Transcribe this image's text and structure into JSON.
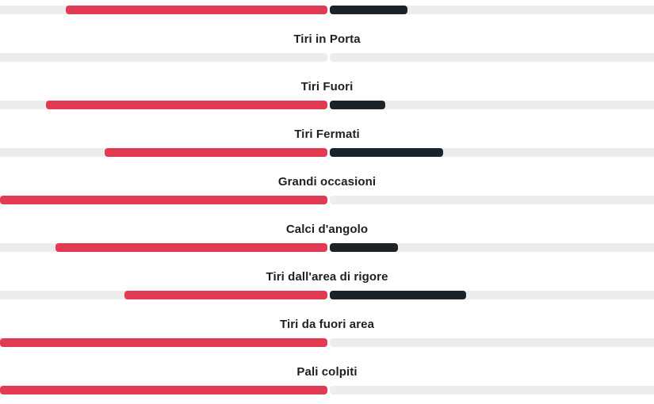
{
  "colors": {
    "home": "#e23a52",
    "away": "#1b2228",
    "track": "#ededed",
    "label": "#1d1f24"
  },
  "stats": [
    {
      "key": "top-partial",
      "label": "",
      "home_pct": 0.8,
      "away_pct": 0.24
    },
    {
      "key": "tiri-in-porta",
      "label": "Tiri in Porta",
      "home_pct": 0.0,
      "away_pct": 0.0
    },
    {
      "key": "tiri-fuori",
      "label": "Tiri Fuori",
      "home_pct": 0.86,
      "away_pct": 0.17
    },
    {
      "key": "tiri-fermati",
      "label": "Tiri Fermati",
      "home_pct": 0.68,
      "away_pct": 0.35
    },
    {
      "key": "grandi-occasioni",
      "label": "Grandi occasioni",
      "home_pct": 1.0,
      "away_pct": 0.0
    },
    {
      "key": "calci-d-angolo",
      "label": "Calci d'angolo",
      "home_pct": 0.83,
      "away_pct": 0.21
    },
    {
      "key": "tiri-area-rigore",
      "label": "Tiri dall'area di rigore",
      "home_pct": 0.62,
      "away_pct": 0.42
    },
    {
      "key": "tiri-fuori-area",
      "label": "Tiri da fuori area",
      "home_pct": 1.0,
      "away_pct": 0.0
    },
    {
      "key": "pali-colpiti",
      "label": "Pali colpiti",
      "home_pct": 1.0,
      "away_pct": 0.0
    }
  ]
}
